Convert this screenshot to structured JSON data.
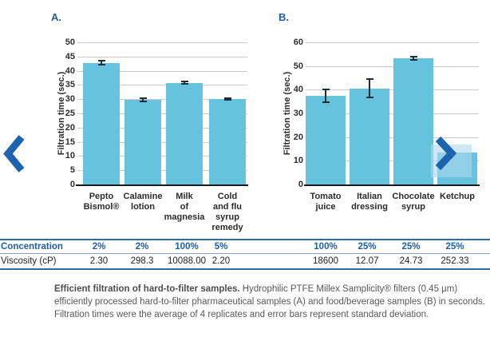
{
  "chart_data": [
    {
      "type": "bar",
      "panel": "A",
      "title": "A.",
      "ylabel": "Filtration time (sec.)",
      "ylim": [
        0,
        50
      ],
      "ytick_step": 5,
      "grid": true,
      "legend": "none",
      "categories": [
        "Pepto\nBismol®",
        "Calamine\nlotion",
        "Milk\nof\nmagnesia",
        "Cold\nand flu\nsyrup\nremedy"
      ],
      "values": [
        42.8,
        29.8,
        35.8,
        30.1
      ],
      "errors": [
        0.8,
        0.6,
        0.4,
        0.2
      ],
      "bar_color": "#65c3de",
      "error_color": "#1e2d3a"
    },
    {
      "type": "bar",
      "panel": "B",
      "title": "B.",
      "ylabel": "Filtration time (sec.)",
      "ylim": [
        0,
        60
      ],
      "ytick_step": 10,
      "grid": true,
      "legend": "none",
      "categories": [
        "Tomato\njuice",
        "Italian\ndressing",
        "Chocolate\nsyrup",
        "Ketchup"
      ],
      "values": [
        37.3,
        40.6,
        53.3,
        13.5
      ],
      "errors": [
        2.7,
        3.8,
        0.8,
        0
      ],
      "bar_color": "#65c3de",
      "error_color": "#1e2d3a"
    }
  ],
  "table": {
    "rows": [
      {
        "label": "Concentration",
        "values": [
          "2%",
          "2%",
          "100%",
          "5%",
          "100%",
          "25%",
          "25%",
          "25%"
        ]
      },
      {
        "label": "Viscosity (cP)",
        "values": [
          "2.30",
          "298.3",
          "10088.00",
          "2.20",
          "18600",
          "12.07",
          "24.73",
          "252.33"
        ]
      }
    ]
  },
  "caption": {
    "bold": "Efficient filtration of hard-to-filter samples.",
    "text": " Hydrophilic PTFE Millex Samplicity® filters (0.45 µm) efficiently processed hard-to-filter pharmaceutical samples (A) and food/beverage samples (B) in seconds. Filtration times were the average of 4 replicates and error bars represent standard deviation."
  },
  "nav": {
    "prev_icon": "chevron-left",
    "next_icon": "chevron-right"
  },
  "colors": {
    "bar": "#65c3de",
    "accent_blue": "#1c5fa8",
    "chevron_blue": "#1d63ae",
    "table_border": "#2c6ca8",
    "caption_text": "#585858",
    "nav_square": "rgba(174,217,238,0.62)",
    "gridline": "#cbcbcb"
  }
}
